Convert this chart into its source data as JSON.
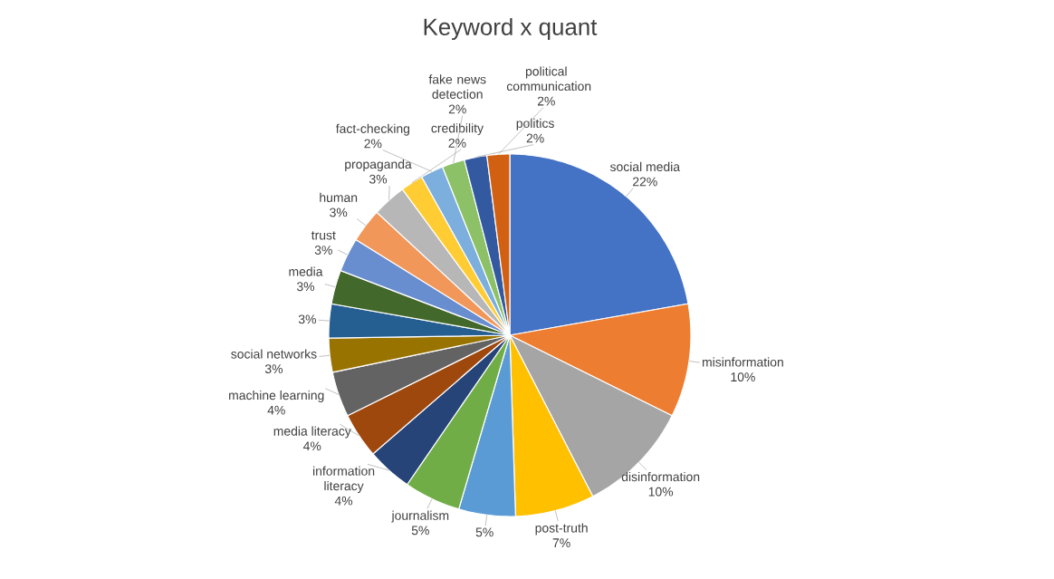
{
  "chart_data": {
    "type": "pie",
    "title": "Keyword x quant",
    "categories": [
      "social media",
      "misinformation",
      "disinformation",
      "post-truth",
      null,
      "journalism",
      "information literacy",
      "media literacy",
      "machine learning",
      "social networks",
      null,
      "media",
      "trust",
      "human",
      "propaganda",
      "credibility",
      "fact-checking",
      "fake news detection",
      "politics",
      "political communication"
    ],
    "values": [
      22,
      10,
      10,
      7,
      5,
      5,
      4,
      4,
      4,
      3,
      3,
      3,
      3,
      3,
      3,
      2,
      2,
      2,
      2,
      2
    ],
    "value_labels": [
      "22%",
      "10%",
      "10%",
      "7%",
      "5%",
      "5%",
      "4%",
      "4%",
      "4%",
      "3%",
      "3%",
      "3%",
      "3%",
      "3%",
      "3%",
      "2%",
      "2%",
      "2%",
      "2%",
      "2%"
    ],
    "colors": [
      "#4472c4",
      "#ed7d31",
      "#a5a5a5",
      "#ffc000",
      "#5b9bd5",
      "#70ad47",
      "#264478",
      "#9e480e",
      "#636363",
      "#997300",
      "#255e91",
      "#43682b",
      "#698ed0",
      "#f1975a",
      "#b7b7b7",
      "#ffcd33",
      "#7cafdd",
      "#8cc168",
      "#335aa1",
      "#d26012"
    ]
  }
}
